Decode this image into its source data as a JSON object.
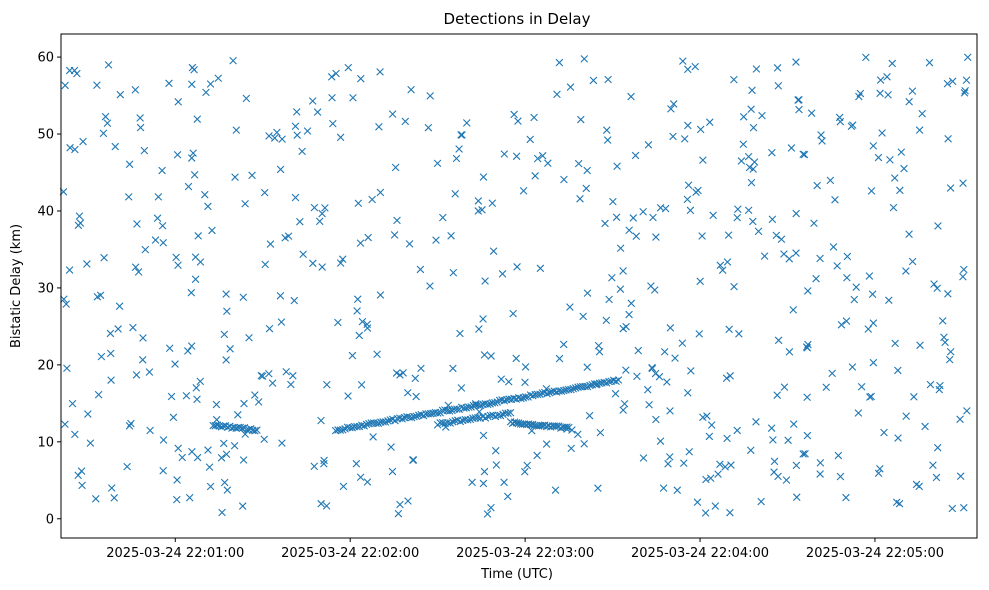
{
  "chart_data": {
    "type": "scatter",
    "title": "Detections in Delay",
    "xlabel": "Time (UTC)",
    "ylabel": "Bistatic Delay (km)",
    "marker": "x",
    "color": "#1f77b4",
    "grid": false,
    "x_tick_labels": [
      "2025-03-24 22:01:00",
      "2025-03-24 22:02:00",
      "2025-03-24 22:03:00",
      "2025-03-24 22:04:00",
      "2025-03-24 22:05:00"
    ],
    "x_tick_seconds": [
      60,
      120,
      180,
      240,
      300
    ],
    "y_ticks": [
      0,
      10,
      20,
      30,
      40,
      50,
      60
    ],
    "xlim_seconds": [
      20.8,
      335.0
    ],
    "ylim": [
      -2.5,
      63
    ],
    "x_units": "seconds after 2025-03-24 22:00:00 UTC",
    "background_noise": {
      "count": 620,
      "x_range": [
        21,
        332
      ],
      "y_range": [
        0.5,
        60
      ]
    },
    "tracks": [
      {
        "x_start": 73,
        "x_end": 88,
        "y_start": 12.2,
        "y_end": 11.5,
        "points": 22
      },
      {
        "x_start": 115,
        "x_end": 212,
        "y_start": 11.5,
        "y_end": 18.0,
        "points": 120
      },
      {
        "x_start": 150,
        "x_end": 175,
        "y_start": 12.3,
        "y_end": 13.7,
        "points": 30
      },
      {
        "x_start": 175,
        "x_end": 195,
        "y_start": 12.5,
        "y_end": 11.8,
        "points": 30
      }
    ]
  }
}
